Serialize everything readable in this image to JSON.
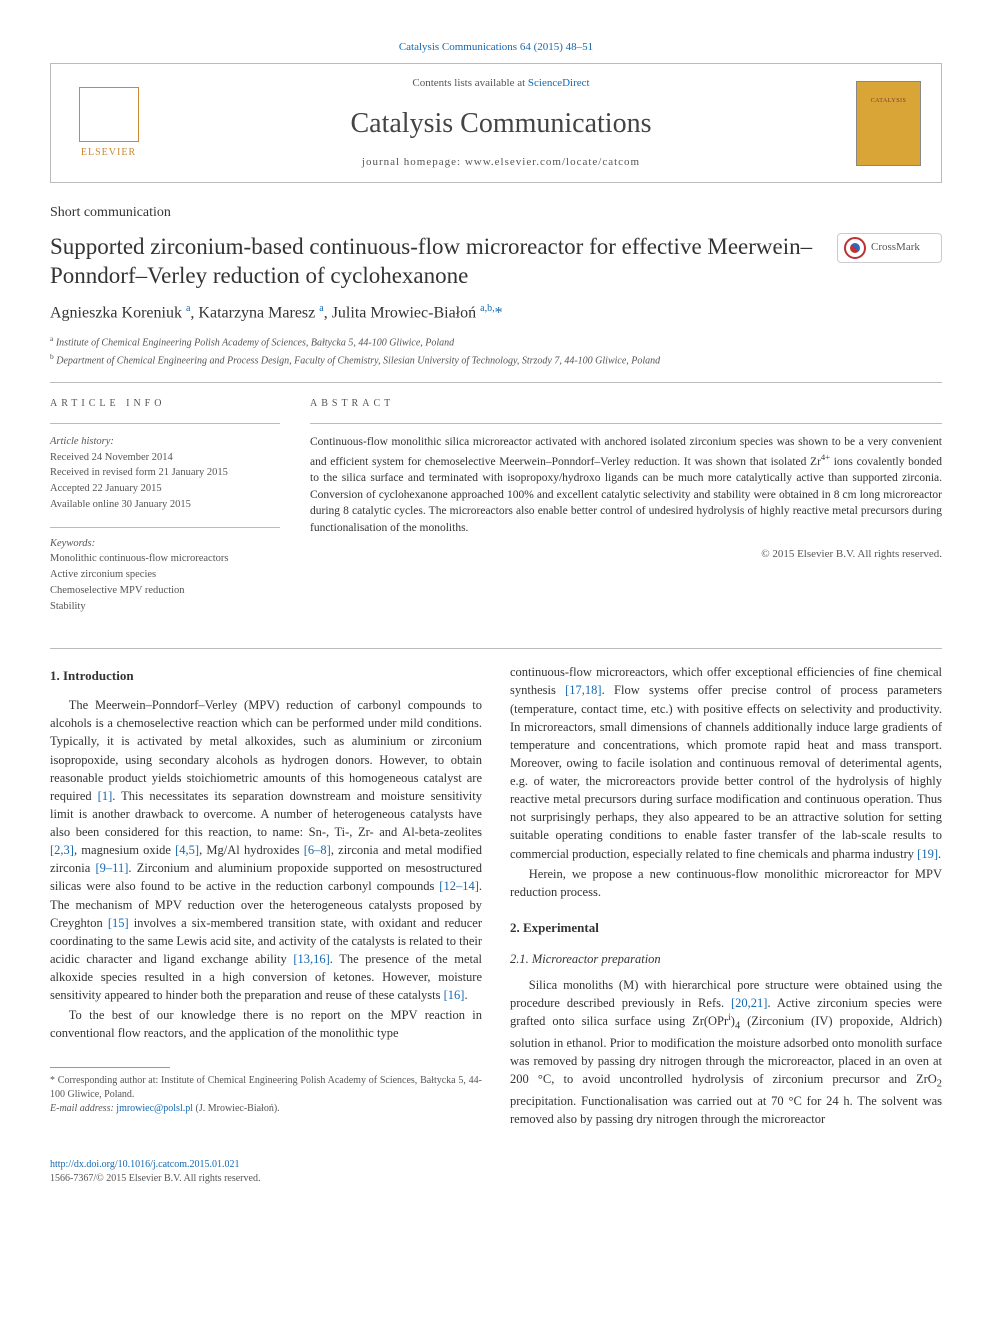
{
  "top_link": "Catalysis Communications 64 (2015) 48–51",
  "header": {
    "contents_prefix": "Contents lists available at ",
    "contents_link": "ScienceDirect",
    "journal_name": "Catalysis Communications",
    "homepage_prefix": "journal homepage: ",
    "homepage_url": "www.elsevier.com/locate/catcom",
    "elsevier_label": "ELSEVIER",
    "cover_text": "CATALYSIS"
  },
  "article_type": "Short communication",
  "title": "Supported zirconium-based continuous-flow microreactor for effective Meerwein–Ponndorf–Verley reduction of cyclohexanone",
  "crossmark": "CrossMark",
  "authors_html": "Agnieszka Koreniuk <sup>a</sup>, Katarzyna Maresz <sup>a</sup>, Julita Mrowiec-Białoń <sup>a,b,</sup><span class='star'>*</span>",
  "affiliations": [
    {
      "sup": "a",
      "text": " Institute of Chemical Engineering Polish Academy of Sciences, Bałtycka 5, 44-100 Gliwice, Poland"
    },
    {
      "sup": "b",
      "text": " Department of Chemical Engineering and Process Design, Faculty of Chemistry, Silesian University of Technology, Strzody 7, 44-100 Gliwice, Poland"
    }
  ],
  "info": {
    "label": "ARTICLE INFO",
    "history_label": "Article history:",
    "history": [
      "Received 24 November 2014",
      "Received in revised form 21 January 2015",
      "Accepted 22 January 2015",
      "Available online 30 January 2015"
    ],
    "keywords_label": "Keywords:",
    "keywords": [
      "Monolithic continuous-flow microreactors",
      "Active zirconium species",
      "Chemoselective MPV reduction",
      "Stability"
    ]
  },
  "abstract": {
    "label": "ABSTRACT",
    "text": "Continuous-flow monolithic silica microreactor activated with anchored isolated zirconium species was shown to be a very convenient and efficient system for chemoselective Meerwein–Ponndorf–Verley reduction. It was shown that isolated Zr4+ ions covalently bonded to the silica surface and terminated with isopropoxy/hydroxo ligands can be much more catalytically active than supported zirconia. Conversion of cyclohexanone approached 100% and excellent catalytic selectivity and stability were obtained in 8 cm long microreactor during 8 catalytic cycles. The microreactors also enable better control of undesired hydrolysis of highly reactive metal precursors during functionalisation of the monoliths.",
    "copyright": "© 2015 Elsevier B.V. All rights reserved."
  },
  "body": {
    "left": {
      "heading": "1. Introduction",
      "p1": "The Meerwein–Ponndorf–Verley (MPV) reduction of carbonyl compounds to alcohols is a chemoselective reaction which can be performed under mild conditions. Typically, it is activated by metal alkoxides, such as aluminium or zirconium isopropoxide, using secondary alcohols as hydrogen donors. However, to obtain reasonable product yields stoichiometric amounts of this homogeneous catalyst are required ",
      "r1": "[1]",
      "p1b": ". This necessitates its separation downstream and moisture sensitivity limit is another drawback to overcome. A number of heterogeneous catalysts have also been considered for this reaction, to name: Sn-, Ti-, Zr- and Al-beta-zeolites ",
      "r2": "[2,3]",
      "p1c": ", magnesium oxide ",
      "r3": "[4,5]",
      "p1d": ", Mg/Al hydroxides ",
      "r4": "[6–8]",
      "p1e": ", zirconia and metal modified zirconia ",
      "r5": "[9–11]",
      "p1f": ". Zirconium and aluminium propoxide supported on mesostructured silicas were also found to be active in the reduction carbonyl compounds ",
      "r6": "[12–14]",
      "p1g": ". The mechanism of MPV reduction over the heterogeneous catalysts proposed by Creyghton ",
      "r7": "[15]",
      "p1h": " involves a six-membered transition state, with oxidant and reducer coordinating to the same Lewis acid site, and activity of the catalysts is related to their acidic character and ligand exchange ability ",
      "r8": "[13,16]",
      "p1i": ". The presence of the metal alkoxide species resulted in a high conversion of ketones. However, moisture sensitivity appeared to hinder both the preparation and reuse of these catalysts ",
      "r9": "[16]",
      "p1j": ".",
      "p2": "To the best of our knowledge there is no report on the MPV reaction in conventional flow reactors, and the application of the monolithic type",
      "footnote_star": "* Corresponding author at: Institute of Chemical Engineering Polish Academy of Sciences, Bałtycka 5, 44-100 Gliwice, Poland.",
      "footnote_email_label": "E-mail address: ",
      "footnote_email": "jmrowiec@polsl.pl",
      "footnote_email_suffix": " (J. Mrowiec-Białoń)."
    },
    "right": {
      "p1": "continuous-flow microreactors, which offer exceptional efficiencies of fine chemical synthesis ",
      "r1": "[17,18]",
      "p1b": ". Flow systems offer precise control of process parameters (temperature, contact time, etc.) with positive effects on selectivity and productivity. In microreactors, small dimensions of channels additionally induce large gradients of temperature and concentrations, which promote rapid heat and mass transport. Moreover, owing to facile isolation and continuous removal of deterimental agents, e.g. of water, the microreactors provide better control of the hydrolysis of highly reactive metal precursors during surface modification and continuous operation. Thus not surprisingly perhaps, they also appeared to be an attractive solution for setting suitable operating conditions to enable faster transfer of the lab-scale results to commercial production, especially related to fine chemicals and pharma industry ",
      "r2": "[19]",
      "p1c": ".",
      "p2": "Herein, we propose a new continuous-flow monolithic microreactor for MPV reduction process.",
      "heading2": "2. Experimental",
      "sub21": "2.1. Microreactor preparation",
      "p3": "Silica monoliths (M) with hierarchical pore structure were obtained using the procedure described previously in Refs. ",
      "r3": "[20,21]",
      "p3b": ". Active zirconium species were grafted onto silica surface using Zr(OPr",
      "p3sup": "i",
      "p3c": ")4 (Zirconium (IV) propoxide, Aldrich) solution in ethanol. Prior to modification the moisture adsorbed onto monolith surface was removed by passing dry nitrogen through the microreactor, placed in an oven at 200 °C, to avoid uncontrolled hydrolysis of zirconium precursor and ZrO2 precipitation. Functionalisation was carried out at 70 °C for 24 h. The solvent was removed also by passing dry nitrogen through the microreactor"
    }
  },
  "footer": {
    "doi": "http://dx.doi.org/10.1016/j.catcom.2015.01.021",
    "issn_line": "1566-7367/© 2015 Elsevier B.V. All rights reserved."
  },
  "colors": {
    "link": "#1668b1",
    "text": "#333333",
    "muted": "#555555",
    "border": "#bbbbbb",
    "cover_bg": "#d9a536",
    "elsevier": "#cc8833"
  }
}
